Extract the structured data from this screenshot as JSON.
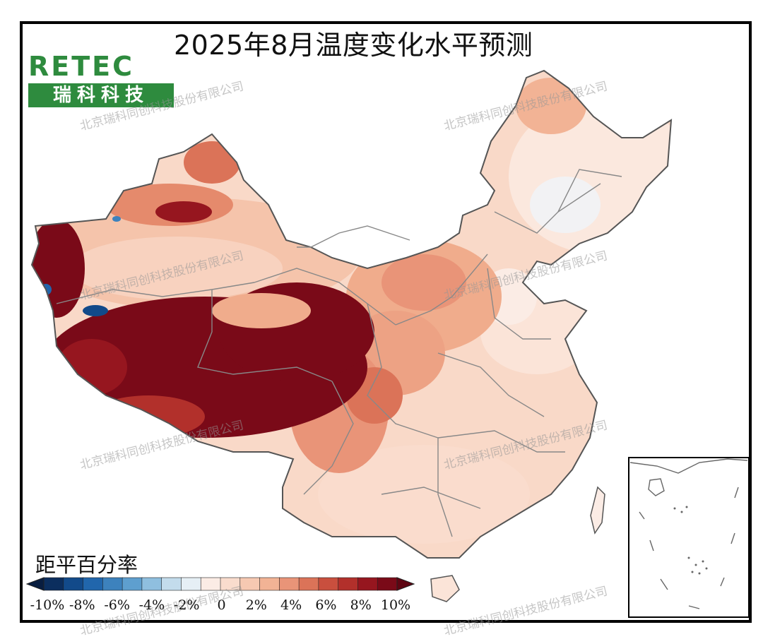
{
  "title": "2025年8月温度变化水平预测",
  "logo": {
    "brand": "RETEC",
    "name_cn": "瑞科科技"
  },
  "watermark": "北京瑞科同创科技股份有限公司",
  "legend": {
    "title": "距平百分率",
    "tick_labels": [
      "-10%",
      "-8%",
      "-6%",
      "-4%",
      "-2%",
      "0",
      "2%",
      "4%",
      "6%",
      "8%",
      "10%"
    ],
    "colors": [
      "#0b2e5e",
      "#124a8a",
      "#2166ac",
      "#3d82bd",
      "#5e9fcf",
      "#8fbfdf",
      "#c3dcec",
      "#e6eff5",
      "#fbece5",
      "#f9dccd",
      "#f6c9b2",
      "#f2b395",
      "#e99478",
      "#db7358",
      "#c94f3e",
      "#b2302b",
      "#96161f",
      "#7a0a18"
    ]
  }
}
